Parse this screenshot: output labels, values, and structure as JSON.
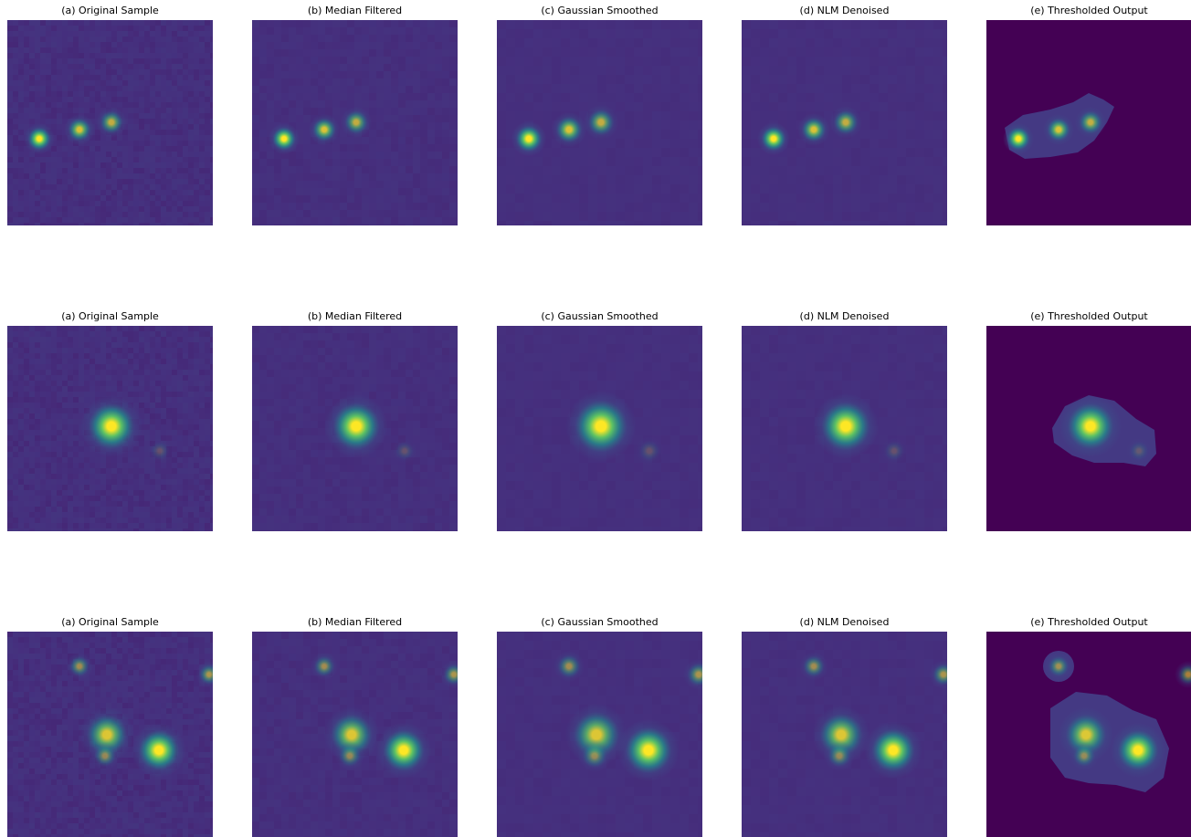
{
  "figure": {
    "rows": [
      {
        "panels": [
          {
            "title": "(a) Original Sample"
          },
          {
            "title": "(b) Median Filtered"
          },
          {
            "title": "(c) Gaussian Smoothed"
          },
          {
            "title": "(d) NLM Denoised"
          },
          {
            "title": "(e) Thresholded Output"
          }
        ]
      },
      {
        "panels": [
          {
            "title": "(a) Original Sample"
          },
          {
            "title": "(b) Median Filtered"
          },
          {
            "title": "(c) Gaussian Smoothed"
          },
          {
            "title": "(d) NLM Denoised"
          },
          {
            "title": "(e) Thresholded Output"
          }
        ]
      },
      {
        "panels": [
          {
            "title": "(a) Original Sample"
          },
          {
            "title": "(b) Median Filtered"
          },
          {
            "title": "(c) Gaussian Smoothed"
          },
          {
            "title": "(d) NLM Denoised"
          },
          {
            "title": "(e) Thresholded Output"
          }
        ]
      }
    ],
    "colors": {
      "background": "#ffffff",
      "title_text": "#000000",
      "colormap": "viridis",
      "threshold_background": "#440154"
    }
  }
}
